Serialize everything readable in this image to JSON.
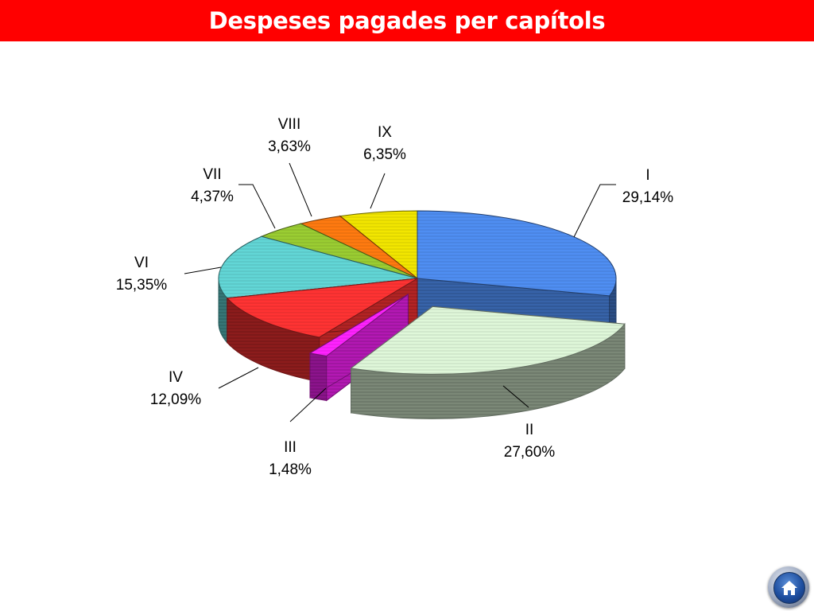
{
  "header": {
    "title": "Despeses pagades per capítols"
  },
  "chart_data": {
    "type": "pie",
    "title": "Despeses pagades per capítols",
    "slices": [
      {
        "label": "I",
        "percent_text": "29,14%",
        "value": 29.14,
        "color": "#4f8ef2",
        "exploded": false
      },
      {
        "label": "II",
        "percent_text": "27,60%",
        "value": 27.6,
        "color": "#dff7d9",
        "exploded": true
      },
      {
        "label": "III",
        "percent_text": "1,48%",
        "value": 1.48,
        "color": "#ff22ff",
        "exploded": true
      },
      {
        "label": "IV",
        "percent_text": "12,09%",
        "value": 12.09,
        "color": "#ff3333",
        "exploded": false
      },
      {
        "label": "VI",
        "percent_text": "15,35%",
        "value": 15.35,
        "color": "#62d6d6",
        "exploded": false
      },
      {
        "label": "VII",
        "percent_text": "4,37%",
        "value": 4.37,
        "color": "#9acd32",
        "exploded": false
      },
      {
        "label": "VIII",
        "percent_text": "3,63%",
        "value": 3.63,
        "color": "#ff7a10",
        "exploded": false
      },
      {
        "label": "IX",
        "percent_text": "6,35%",
        "value": 6.35,
        "color": "#f2e600",
        "exploded": false
      }
    ],
    "legend": "none",
    "style": "3d-exploded-pie"
  },
  "home_button": {
    "icon": "home-icon"
  }
}
